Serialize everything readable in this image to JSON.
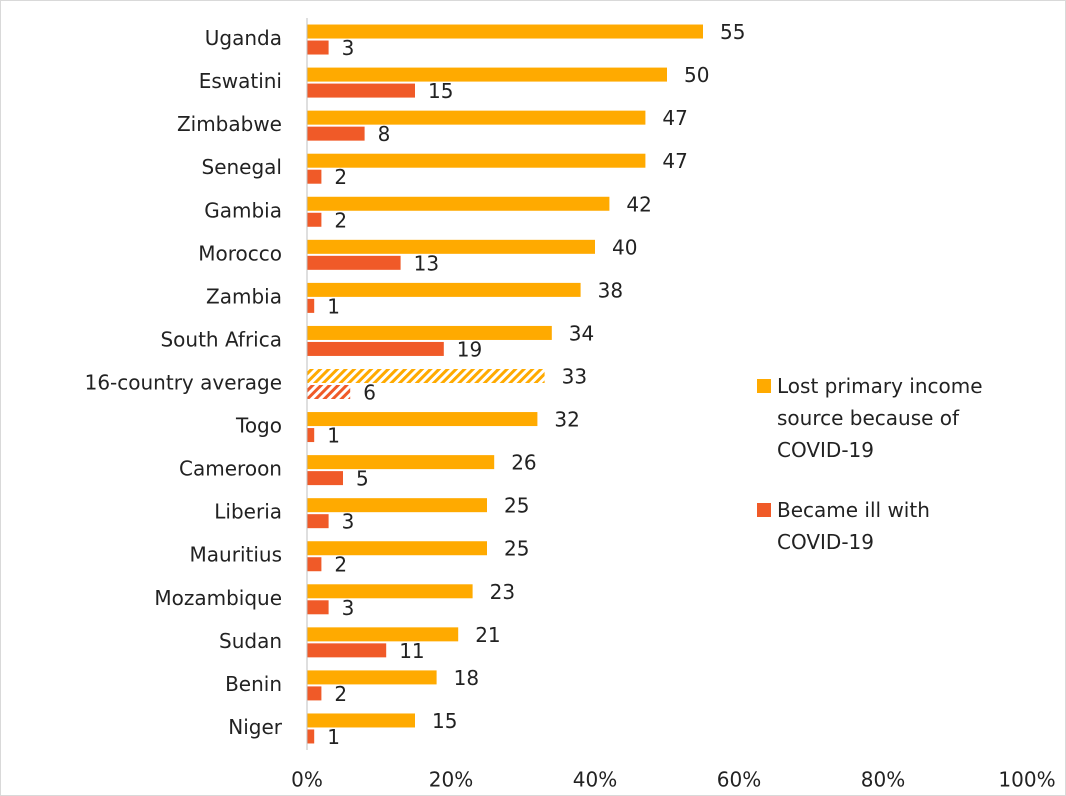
{
  "chart_data": {
    "type": "hbar",
    "categories": [
      "Uganda",
      "Eswatini",
      "Zimbabwe",
      "Senegal",
      "Gambia",
      "Morocco",
      "Zambia",
      "South Africa",
      "16-country average",
      "Togo",
      "Cameroon",
      "Liberia",
      "Mauritius",
      "Mozambique",
      "Sudan",
      "Benin",
      "Niger"
    ],
    "series": [
      {
        "name": "Lost primary income source because of COVID-19",
        "color": "#FFAA00",
        "values": [
          55,
          50,
          47,
          47,
          42,
          40,
          38,
          34,
          33,
          32,
          26,
          25,
          25,
          23,
          21,
          18,
          15
        ]
      },
      {
        "name": "Became ill with COVID-19",
        "color": "#F05A28",
        "values": [
          3,
          15,
          8,
          2,
          2,
          13,
          1,
          19,
          6,
          1,
          5,
          3,
          2,
          3,
          11,
          2,
          1
        ]
      }
    ],
    "hatched_categories": [
      8
    ],
    "xlim": [
      0,
      100
    ],
    "xticks": [
      {
        "value": 0,
        "label": "0%"
      },
      {
        "value": 20,
        "label": "20%"
      },
      {
        "value": 40,
        "label": "40%"
      },
      {
        "value": 60,
        "label": "60%"
      },
      {
        "value": 80,
        "label": "80%"
      },
      {
        "value": 100,
        "label": "100%"
      }
    ],
    "legend": "right"
  }
}
